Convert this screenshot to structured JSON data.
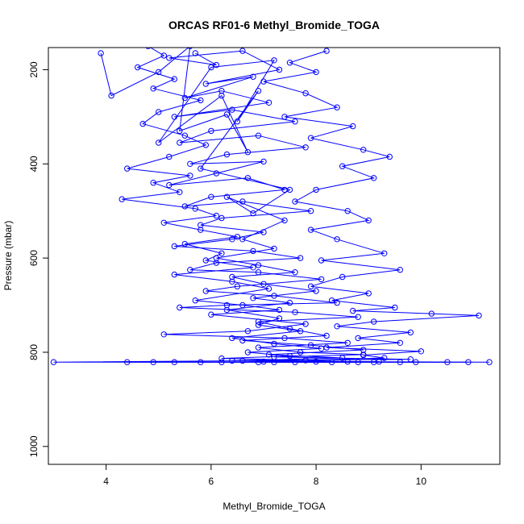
{
  "chart_data": {
    "type": "line",
    "title": "ORCAS RF01-6 Methyl_Bromide_TOGA",
    "xlabel": "Methyl_Bromide_TOGA",
    "ylabel": "Pressure (mbar)",
    "xlim": [
      2.9,
      11.5
    ],
    "ylim": [
      1038,
      153
    ],
    "y_reversed": true,
    "xticks": [
      4,
      6,
      8,
      10
    ],
    "yticks": [
      200,
      400,
      600,
      800,
      1000
    ],
    "grid": false,
    "legend": "none",
    "series_color": "#0000ff",
    "series": [
      {
        "values": [
          [
            5.7,
            165
          ],
          [
            6.1,
            190
          ],
          [
            5.2,
            175
          ],
          [
            6.6,
            160
          ],
          [
            7.3,
            200
          ],
          [
            5.9,
            230
          ],
          [
            6.8,
            215
          ],
          [
            5.5,
            260
          ],
          [
            6.2,
            245
          ],
          [
            7.1,
            270
          ],
          [
            5.3,
            300
          ],
          [
            6.4,
            285
          ],
          [
            7.6,
            310
          ],
          [
            6.0,
            330
          ],
          [
            5.4,
            355
          ],
          [
            6.9,
            340
          ],
          [
            7.8,
            365
          ],
          [
            6.3,
            380
          ],
          [
            5.6,
            400
          ],
          [
            7.0,
            395
          ],
          [
            6.1,
            420
          ],
          [
            5.2,
            445
          ],
          [
            6.7,
            430
          ],
          [
            7.4,
            455
          ],
          [
            6.0,
            470
          ],
          [
            5.5,
            490
          ],
          [
            6.6,
            480
          ],
          [
            7.9,
            500
          ],
          [
            6.2,
            515
          ],
          [
            5.8,
            530
          ],
          [
            7.0,
            545
          ],
          [
            6.4,
            560
          ],
          [
            5.3,
            575
          ],
          [
            6.8,
            585
          ],
          [
            7.7,
            600
          ],
          [
            6.1,
            610
          ],
          [
            5.6,
            625
          ],
          [
            6.9,
            630
          ],
          [
            8.1,
            645
          ],
          [
            6.5,
            660
          ],
          [
            5.9,
            670
          ],
          [
            7.2,
            680
          ],
          [
            8.4,
            695
          ],
          [
            6.3,
            700
          ],
          [
            5.4,
            705
          ],
          [
            7.6,
            715
          ],
          [
            8.8,
            725
          ],
          [
            6.9,
            735
          ],
          [
            7.5,
            750
          ],
          [
            8.2,
            765
          ],
          [
            6.6,
            775
          ],
          [
            7.9,
            785
          ],
          [
            8.9,
            795
          ],
          [
            7.1,
            805
          ],
          [
            8.5,
            812
          ],
          [
            6.4,
            818
          ],
          [
            9.2,
            820
          ],
          [
            7.0,
            820
          ],
          [
            10.5,
            821
          ],
          [
            5.8,
            821
          ],
          [
            8.3,
            821
          ],
          [
            6.2,
            821
          ],
          [
            9.6,
            821
          ]
        ]
      },
      {
        "values": [
          [
            4.8,
            150
          ],
          [
            5.1,
            170
          ],
          [
            4.6,
            195
          ],
          [
            5.3,
            220
          ],
          [
            4.9,
            240
          ],
          [
            5.8,
            265
          ],
          [
            5.0,
            290
          ],
          [
            4.7,
            315
          ],
          [
            5.5,
            340
          ],
          [
            5.9,
            360
          ],
          [
            5.2,
            385
          ],
          [
            4.4,
            410
          ],
          [
            5.6,
            425
          ],
          [
            4.9,
            440
          ],
          [
            5.4,
            460
          ],
          [
            4.3,
            475
          ],
          [
            5.7,
            495
          ],
          [
            6.1,
            510
          ],
          [
            5.1,
            525
          ],
          [
            5.8,
            540
          ],
          [
            6.5,
            555
          ],
          [
            5.5,
            570
          ],
          [
            6.2,
            590
          ],
          [
            5.9,
            605
          ],
          [
            6.8,
            620
          ],
          [
            5.3,
            635
          ],
          [
            6.4,
            650
          ],
          [
            7.1,
            665
          ],
          [
            5.7,
            690
          ],
          [
            6.6,
            700
          ],
          [
            7.3,
            710
          ],
          [
            6.0,
            720
          ],
          [
            7.8,
            740
          ],
          [
            6.7,
            755
          ],
          [
            5.1,
            762
          ],
          [
            7.4,
            770
          ],
          [
            8.6,
            780
          ],
          [
            6.9,
            790
          ],
          [
            7.7,
            800
          ],
          [
            8.9,
            805
          ],
          [
            7.2,
            810
          ],
          [
            9.8,
            815
          ],
          [
            6.6,
            818
          ],
          [
            8.0,
            820
          ],
          [
            4.4,
            821
          ],
          [
            9.1,
            821
          ],
          [
            5.3,
            821
          ],
          [
            7.6,
            821
          ],
          [
            10.9,
            821
          ]
        ]
      },
      {
        "values": [
          [
            8.2,
            160
          ],
          [
            7.5,
            185
          ],
          [
            8.0,
            205
          ],
          [
            7.0,
            225
          ],
          [
            7.8,
            250
          ],
          [
            8.4,
            280
          ],
          [
            7.4,
            300
          ],
          [
            8.7,
            320
          ],
          [
            7.9,
            345
          ],
          [
            8.9,
            370
          ],
          [
            9.4,
            385
          ],
          [
            8.5,
            405
          ],
          [
            9.1,
            430
          ],
          [
            8.0,
            455
          ],
          [
            7.6,
            480
          ],
          [
            8.6,
            500
          ],
          [
            9.0,
            520
          ],
          [
            7.9,
            540
          ],
          [
            8.4,
            560
          ],
          [
            9.3,
            590
          ],
          [
            8.1,
            605
          ],
          [
            9.6,
            625
          ],
          [
            8.5,
            640
          ],
          [
            7.9,
            660
          ],
          [
            9.0,
            675
          ],
          [
            8.3,
            690
          ],
          [
            9.5,
            705
          ],
          [
            8.7,
            712
          ],
          [
            10.2,
            718
          ],
          [
            11.1,
            722
          ],
          [
            9.1,
            735
          ],
          [
            8.4,
            745
          ],
          [
            9.8,
            758
          ],
          [
            8.8,
            770
          ],
          [
            9.6,
            780
          ],
          [
            8.2,
            790
          ],
          [
            10.0,
            798
          ],
          [
            8.9,
            806
          ],
          [
            9.3,
            812
          ],
          [
            7.8,
            817
          ],
          [
            8.6,
            820
          ],
          [
            11.3,
            821
          ],
          [
            7.2,
            821
          ],
          [
            9.9,
            821
          ]
        ]
      },
      {
        "values": [
          [
            3.9,
            165
          ],
          [
            4.1,
            255
          ],
          [
            5.0,
            205
          ],
          [
            5.6,
            150
          ],
          [
            5.4,
            330
          ],
          [
            6.3,
            295
          ],
          [
            6.7,
            375
          ],
          [
            6.2,
            255
          ],
          [
            5.0,
            355
          ],
          [
            6.0,
            195
          ],
          [
            7.2,
            180
          ],
          [
            6.5,
            310
          ],
          [
            6.9,
            245
          ],
          [
            5.8,
            410
          ],
          [
            7.5,
            455
          ],
          [
            6.8,
            505
          ],
          [
            6.3,
            470
          ],
          [
            7.4,
            520
          ],
          [
            6.6,
            560
          ],
          [
            7.2,
            580
          ],
          [
            6.1,
            600
          ],
          [
            6.9,
            615
          ],
          [
            7.6,
            630
          ],
          [
            6.4,
            640
          ],
          [
            7.0,
            655
          ],
          [
            8.0,
            670
          ],
          [
            6.8,
            685
          ],
          [
            7.5,
            695
          ],
          [
            6.3,
            710
          ],
          [
            7.3,
            728
          ],
          [
            6.9,
            742
          ],
          [
            7.7,
            755
          ],
          [
            6.4,
            770
          ],
          [
            7.2,
            782
          ],
          [
            8.1,
            792
          ],
          [
            6.7,
            800
          ],
          [
            7.5,
            808
          ],
          [
            6.2,
            813
          ],
          [
            7.8,
            817
          ],
          [
            3.0,
            821
          ],
          [
            6.9,
            821
          ],
          [
            8.8,
            821
          ],
          [
            4.9,
            821
          ]
        ]
      }
    ]
  }
}
